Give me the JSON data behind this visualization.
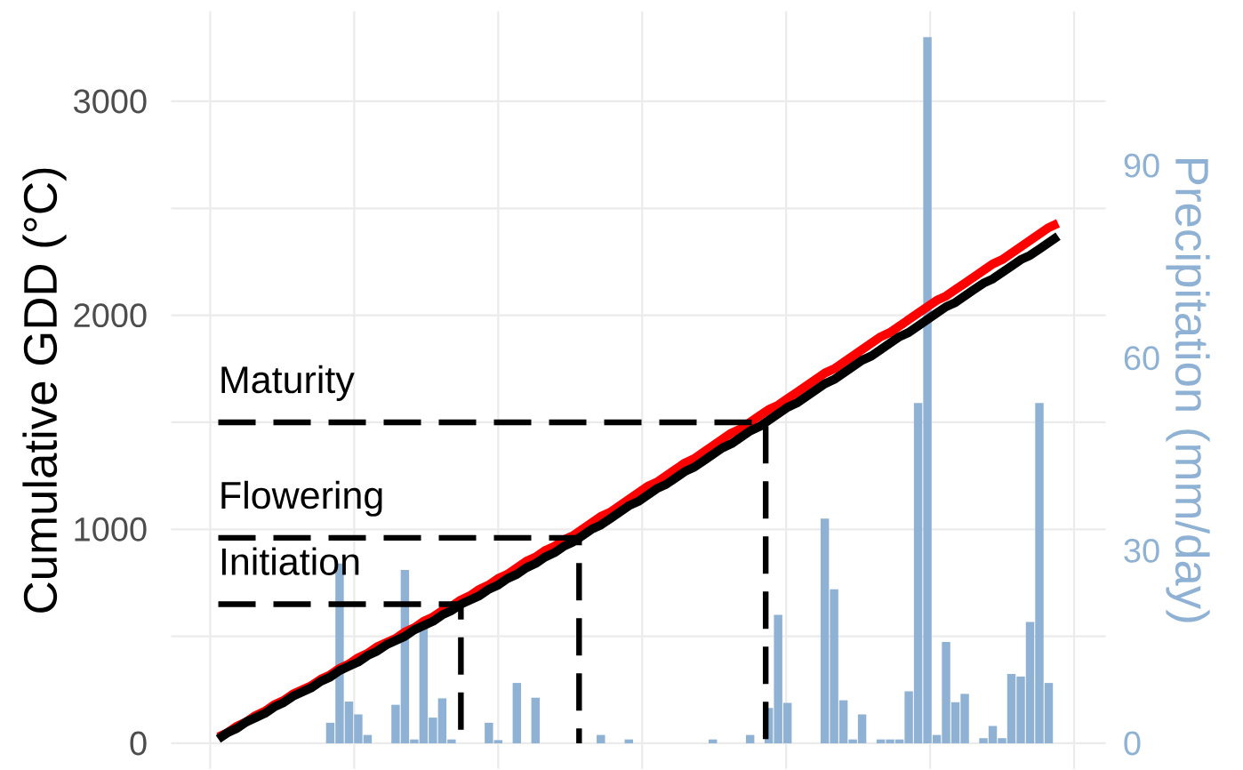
{
  "chart_data": {
    "type": "bar",
    "ylabel": "Cumulative GDD (°C)",
    "y2label": "Precipitation (mm/day)",
    "categories": [
      null,
      null,
      null,
      null,
      null,
      null,
      null,
      null,
      null,
      null,
      null,
      null,
      null,
      null,
      null,
      null,
      null,
      null,
      null,
      null,
      null,
      null,
      null,
      null,
      null,
      null,
      null,
      null,
      null,
      null,
      null,
      null,
      null,
      null,
      null,
      null,
      null,
      null,
      null,
      null,
      null,
      null,
      null,
      null,
      null,
      null,
      null,
      null,
      null,
      null,
      null,
      null,
      null,
      null,
      null,
      null,
      null,
      null,
      null,
      null,
      null,
      null,
      null,
      null,
      null,
      null,
      null,
      null,
      null,
      null,
      null,
      null,
      null,
      null,
      null,
      null,
      null,
      null,
      null,
      null,
      null,
      null,
      null,
      null,
      null,
      null,
      null,
      null,
      null,
      null,
      null
    ],
    "series": [
      {
        "axis": "y2",
        "color": "#8fb2d4",
        "values": [
          null,
          null,
          null,
          null,
          null,
          null,
          null,
          null,
          null,
          null,
          null,
          null,
          3.2,
          28,
          6.5,
          4.5,
          1.3,
          null,
          null,
          6,
          27,
          0.6,
          18,
          4,
          7,
          0.6,
          null,
          null,
          null,
          3.2,
          0.5,
          null,
          9.4,
          null,
          7.1,
          null,
          null,
          null,
          null,
          null,
          null,
          1.3,
          null,
          null,
          0.6,
          null,
          null,
          null,
          null,
          null,
          null,
          null,
          null,
          0.6,
          null,
          null,
          null,
          1.3,
          null,
          5.5,
          20,
          6.3,
          null,
          null,
          null,
          35,
          24,
          6.7,
          0.6,
          4.5,
          null,
          0.6,
          0.6,
          0.6,
          8.1,
          53,
          110,
          1.3,
          15.8,
          6.4,
          7.7,
          null,
          0.8,
          2.7,
          0.8,
          10.8,
          10.4,
          18.9,
          53,
          9.4,
          null
        ]
      },
      {
        "type": "line",
        "color": "#ff0000",
        "values": [
          30,
          50,
          80,
          100,
          130,
          150,
          180,
          200,
          230,
          250,
          270,
          300,
          320,
          350,
          370,
          400,
          420,
          450,
          470,
          490,
          520,
          540,
          570,
          590,
          620,
          640,
          670,
          690,
          720,
          740,
          770,
          790,
          820,
          850,
          870,
          900,
          920,
          950,
          970,
          1000,
          1030,
          1060,
          1080,
          1110,
          1140,
          1170,
          1200,
          1220,
          1250,
          1280,
          1310,
          1330,
          1360,
          1390,
          1420,
          1450,
          1470,
          1500,
          1530,
          1560,
          1580,
          1610,
          1640,
          1670,
          1700,
          1730,
          1750,
          1780,
          1810,
          1840,
          1870,
          1900,
          1920,
          1950,
          1980,
          2010,
          2040,
          2070,
          2090,
          2120,
          2150,
          2180,
          2210,
          2240,
          2260,
          2290,
          2320,
          2350,
          2380,
          2410,
          2430
        ]
      },
      {
        "type": "line",
        "color": "#000000",
        "values": [
          20,
          50,
          70,
          100,
          120,
          140,
          170,
          190,
          220,
          240,
          260,
          290,
          310,
          340,
          360,
          380,
          410,
          430,
          460,
          480,
          500,
          530,
          550,
          570,
          600,
          620,
          650,
          670,
          690,
          720,
          740,
          770,
          790,
          820,
          840,
          870,
          890,
          920,
          940,
          970,
          1000,
          1020,
          1050,
          1080,
          1110,
          1130,
          1160,
          1190,
          1210,
          1240,
          1270,
          1290,
          1320,
          1350,
          1380,
          1400,
          1430,
          1460,
          1480,
          1510,
          1540,
          1570,
          1590,
          1620,
          1650,
          1680,
          1700,
          1730,
          1760,
          1790,
          1810,
          1840,
          1870,
          1900,
          1920,
          1950,
          1980,
          2010,
          2040,
          2060,
          2090,
          2120,
          2150,
          2170,
          2200,
          2230,
          2260,
          2280,
          2310,
          2340,
          2370
        ]
      }
    ],
    "ref_lines": [
      {
        "axis": "y",
        "value": 1500,
        "label": "Maturity",
        "color": "#000000",
        "line_style": "dashed"
      },
      {
        "axis": "y",
        "value": 960,
        "label": "Flowering",
        "color": "#000000",
        "line_style": "dashed"
      },
      {
        "axis": "y",
        "value": 650,
        "label": "Initiation",
        "color": "#000000",
        "line_style": "dashed"
      }
    ],
    "ylim": [
      -120,
      3420
    ],
    "yticks": [
      0,
      {
        "value": 500,
        "label": null
      },
      1000,
      {
        "value": 1500,
        "label": null
      },
      2000,
      {
        "value": 2500,
        "label": null
      },
      3000
    ],
    "y2lim": [
      -4,
      114
    ],
    "y2ticks": [
      0,
      30,
      60,
      90
    ],
    "grid": true,
    "tick_labels": "y"
  }
}
